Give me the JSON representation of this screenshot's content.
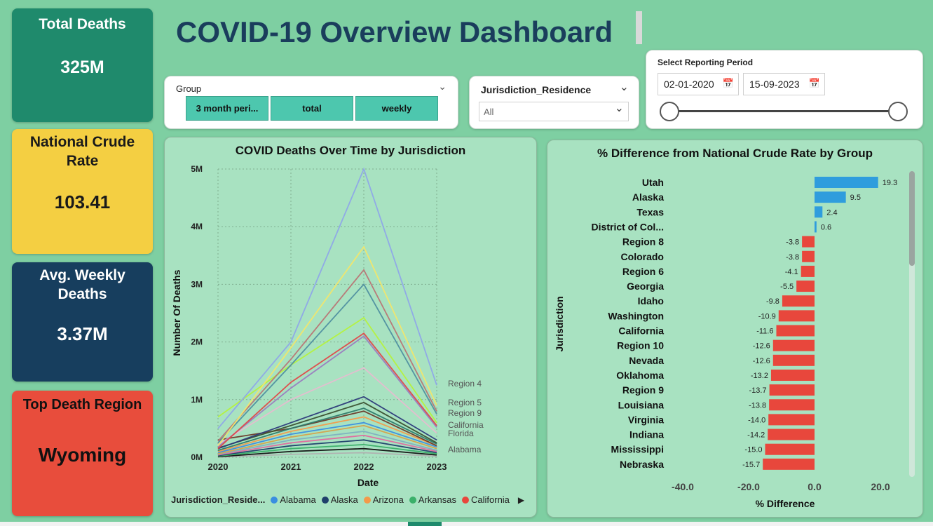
{
  "page_title": "COVID-19 Overview Dashboard",
  "kpis": {
    "total_deaths": {
      "label": "Total Deaths",
      "value": "325M"
    },
    "crude_rate": {
      "label": "National Crude Rate",
      "value": "103.41"
    },
    "weekly": {
      "label": "Avg. Weekly Deaths",
      "value": "3.37M"
    },
    "top_region": {
      "label": "Top Death Region",
      "value": "Wyoming"
    }
  },
  "group_slicer": {
    "title": "Group",
    "options": [
      "3 month peri...",
      "total",
      "weekly"
    ]
  },
  "jurisdiction_slicer": {
    "title": "Jurisdiction_Residence",
    "selected": "All"
  },
  "period_slicer": {
    "title": "Select Reporting Period",
    "start": "02-01-2020",
    "end": "15-09-2023"
  },
  "colors": {
    "positive_bar": "#2f9ddd",
    "negative_bar": "#e8473c",
    "background": "#7ecfa2",
    "title_navy": "#1a3d5c"
  },
  "chart_data": [
    {
      "type": "line",
      "title": "COVID Deaths Over Time by Jurisdiction",
      "xlabel": "Date",
      "ylabel": "Number Of Deaths",
      "x": [
        "2020",
        "2021",
        "2022",
        "2023"
      ],
      "ylim": [
        0,
        5000000
      ],
      "yticks": [
        "0M",
        "1M",
        "2M",
        "3M",
        "4M",
        "5M"
      ],
      "grid": true,
      "legend_title": "Jurisdiction_Reside...",
      "legend_items": [
        "Alabama",
        "Alaska",
        "Arizona",
        "Arkansas",
        "California"
      ],
      "legend_colors": [
        "#3a8ee0",
        "#1f3f6b",
        "#f39a4a",
        "#3bb06a",
        "#e8473c"
      ],
      "end_labels": [
        "Region 4",
        "Region 5",
        "Region 9",
        "California",
        "Florida",
        "Alabama"
      ],
      "series": [
        {
          "name": "Region 4",
          "color": "#8ea6e8",
          "values": [
            500000,
            2000000,
            5000000,
            1250000
          ]
        },
        {
          "values": [
            200000,
            1900000,
            3650000,
            900000
          ],
          "color": "#f2e66a"
        },
        {
          "values": [
            280000,
            1700000,
            3250000,
            800000
          ],
          "color": "#b87575"
        },
        {
          "values": [
            250000,
            1600000,
            3000000,
            750000
          ],
          "color": "#4f8fa0"
        },
        {
          "values": [
            700000,
            1600000,
            2420000,
            600000
          ],
          "color": "#b5f23c"
        },
        {
          "values": [
            150000,
            1300000,
            2150000,
            550000
          ],
          "color": "#e04848"
        },
        {
          "values": [
            180000,
            1200000,
            2100000,
            520000
          ],
          "color": "#9a7bc0"
        },
        {
          "values": [
            220000,
            1000000,
            1550000,
            420000
          ],
          "color": "#e6bcd0"
        },
        {
          "values": [
            150000,
            600000,
            1050000,
            300000
          ],
          "color": "#2c3a7a"
        },
        {
          "values": [
            160000,
            550000,
            950000,
            250000
          ],
          "color": "#3a5030"
        },
        {
          "values": [
            120000,
            500000,
            850000,
            230000
          ],
          "color": "#2e7a6a"
        },
        {
          "values": [
            300000,
            500000,
            800000,
            200000
          ],
          "color": "#6b3a2a"
        },
        {
          "values": [
            100000,
            450000,
            700000,
            200000
          ],
          "color": "#f39a4a"
        },
        {
          "values": [
            80000,
            400000,
            600000,
            180000
          ],
          "color": "#3a8ee0"
        },
        {
          "values": [
            60000,
            350000,
            550000,
            150000
          ],
          "color": "#d6a24a"
        },
        {
          "values": [
            50000,
            300000,
            450000,
            120000
          ],
          "color": "#7fb0c0"
        },
        {
          "values": [
            40000,
            250000,
            380000,
            100000
          ],
          "color": "#e06aa0"
        },
        {
          "values": [
            30000,
            200000,
            300000,
            80000
          ],
          "color": "#1f3f6b"
        },
        {
          "values": [
            20000,
            150000,
            220000,
            60000
          ],
          "color": "#3bb06a"
        },
        {
          "values": [
            10000,
            100000,
            150000,
            40000
          ],
          "color": "#111111"
        },
        {
          "values": [
            5000,
            50000,
            80000,
            20000
          ],
          "color": "#b0b0b0"
        }
      ]
    },
    {
      "type": "bar",
      "orientation": "horizontal",
      "title": "% Difference from National Crude Rate by Group",
      "xlabel": "% Difference",
      "ylabel": "Jurisdiction",
      "xlim": [
        -40,
        20
      ],
      "xticks": [
        "-40.0",
        "-20.0",
        "0.0",
        "20.0"
      ],
      "categories": [
        "Utah",
        "Alaska",
        "Texas",
        "District of Col...",
        "Region 8",
        "Colorado",
        "Region 6",
        "Georgia",
        "Idaho",
        "Washington",
        "California",
        "Region 10",
        "Nevada",
        "Oklahoma",
        "Region 9",
        "Louisiana",
        "Virginia",
        "Indiana",
        "Mississippi",
        "Nebraska"
      ],
      "values": [
        19.3,
        9.5,
        2.4,
        0.6,
        -3.8,
        -3.8,
        -4.1,
        -5.5,
        -9.8,
        -10.9,
        -11.6,
        -12.6,
        -12.6,
        -13.2,
        -13.7,
        -13.8,
        -14.0,
        -14.2,
        -15.0,
        -15.7
      ],
      "value_labels": [
        "19.3",
        "9.5",
        "2.4",
        "0.6",
        "-3.8",
        "-3.8",
        "-4.1",
        "-5.5",
        "-9.8",
        "-10.9",
        "-11.6",
        "-12.6",
        "-12.6",
        "-13.2",
        "-13.7",
        "-13.8",
        "-14.0",
        "-14.2",
        "-15.0",
        "-15.7"
      ]
    }
  ]
}
